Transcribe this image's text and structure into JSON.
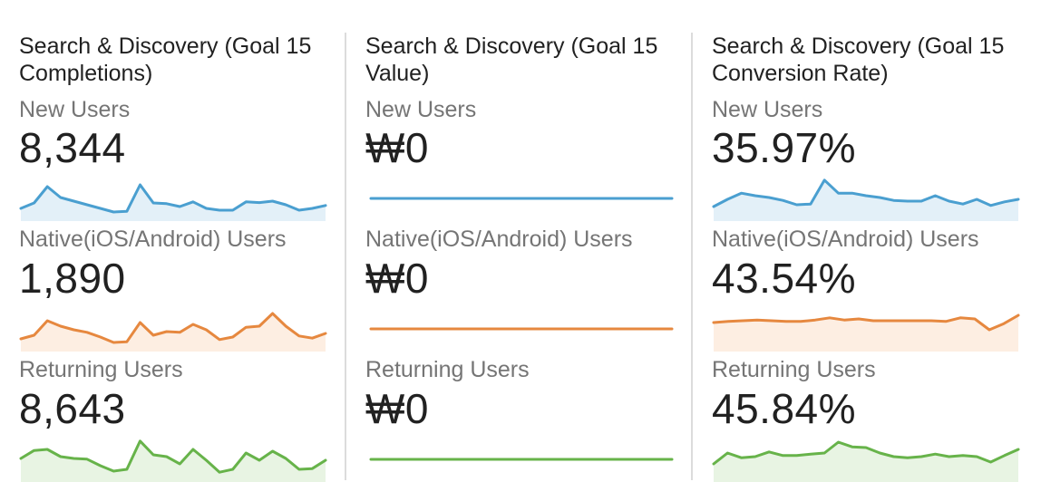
{
  "segments": [
    {
      "name": "New Users",
      "color": "#4a9fd0",
      "fill": "#e3f0f8"
    },
    {
      "name": "Native(iOS/Android) Users",
      "color": "#e6883f",
      "fill": "#fdeee2"
    },
    {
      "name": "Returning Users",
      "color": "#67b34a",
      "fill": "#e8f4e3"
    }
  ],
  "cards": [
    {
      "title": "Search & Discovery (Goal 15 Completions)",
      "labels": [
        "New Users",
        "Native(iOS/Android) Users",
        "Returning Users"
      ],
      "values": [
        "8,344",
        "1,890",
        "8,643"
      ],
      "sparks": [
        [
          0.2,
          0.35,
          0.8,
          0.5,
          0.4,
          0.3,
          0.2,
          0.1,
          0.12,
          0.85,
          0.35,
          0.33,
          0.25,
          0.38,
          0.2,
          0.15,
          0.15,
          0.38,
          0.36,
          0.4,
          0.3,
          0.15,
          0.2,
          0.28
        ],
        [
          0.2,
          0.3,
          0.7,
          0.55,
          0.45,
          0.38,
          0.25,
          0.1,
          0.12,
          0.65,
          0.3,
          0.4,
          0.38,
          0.6,
          0.45,
          0.18,
          0.25,
          0.52,
          0.55,
          0.9,
          0.55,
          0.28,
          0.22,
          0.35
        ],
        [
          0.5,
          0.72,
          0.75,
          0.55,
          0.5,
          0.48,
          0.3,
          0.15,
          0.2,
          0.98,
          0.6,
          0.55,
          0.35,
          0.75,
          0.45,
          0.12,
          0.2,
          0.65,
          0.45,
          0.7,
          0.5,
          0.2,
          0.22,
          0.45
        ]
      ]
    },
    {
      "title": "Search & Discovery (Goal 15 Value)",
      "labels": [
        "New Users",
        "Native(iOS/Android) Users",
        "Returning Users"
      ],
      "values": [
        "₩0",
        "₩0",
        "₩0"
      ],
      "sparks": [
        [
          0.5,
          0.5,
          0.5,
          0.5,
          0.5,
          0.5,
          0.5,
          0.5,
          0.5,
          0.5,
          0.5,
          0.5,
          0.5,
          0.5,
          0.5,
          0.5,
          0.5,
          0.5,
          0.5,
          0.5,
          0.5,
          0.5,
          0.5,
          0.5
        ],
        [
          0.5,
          0.5,
          0.5,
          0.5,
          0.5,
          0.5,
          0.5,
          0.5,
          0.5,
          0.5,
          0.5,
          0.5,
          0.5,
          0.5,
          0.5,
          0.5,
          0.5,
          0.5,
          0.5,
          0.5,
          0.5,
          0.5,
          0.5,
          0.5
        ],
        [
          0.5,
          0.5,
          0.5,
          0.5,
          0.5,
          0.5,
          0.5,
          0.5,
          0.5,
          0.5,
          0.5,
          0.5,
          0.5,
          0.5,
          0.5,
          0.5,
          0.5,
          0.5,
          0.5,
          0.5,
          0.5,
          0.5,
          0.5,
          0.5
        ]
      ]
    },
    {
      "title": "Search & Discovery (Goal 15 Conversion Rate)",
      "labels": [
        "New Users",
        "Native(iOS/Android) Users",
        "Returning Users"
      ],
      "values": [
        "35.97%",
        "43.54%",
        "45.84%"
      ],
      "sparks": [
        [
          0.25,
          0.45,
          0.62,
          0.55,
          0.5,
          0.42,
          0.3,
          0.32,
          0.98,
          0.62,
          0.62,
          0.55,
          0.5,
          0.42,
          0.4,
          0.4,
          0.55,
          0.4,
          0.32,
          0.45,
          0.28,
          0.38,
          0.45
        ],
        [
          0.65,
          0.68,
          0.7,
          0.72,
          0.7,
          0.68,
          0.68,
          0.72,
          0.78,
          0.72,
          0.75,
          0.7,
          0.7,
          0.7,
          0.7,
          0.7,
          0.68,
          0.78,
          0.75,
          0.45,
          0.62,
          0.85
        ],
        [
          0.35,
          0.65,
          0.52,
          0.55,
          0.68,
          0.58,
          0.58,
          0.62,
          0.65,
          0.95,
          0.82,
          0.8,
          0.65,
          0.55,
          0.52,
          0.55,
          0.62,
          0.55,
          0.58,
          0.55,
          0.4,
          0.58,
          0.75
        ]
      ]
    }
  ]
}
